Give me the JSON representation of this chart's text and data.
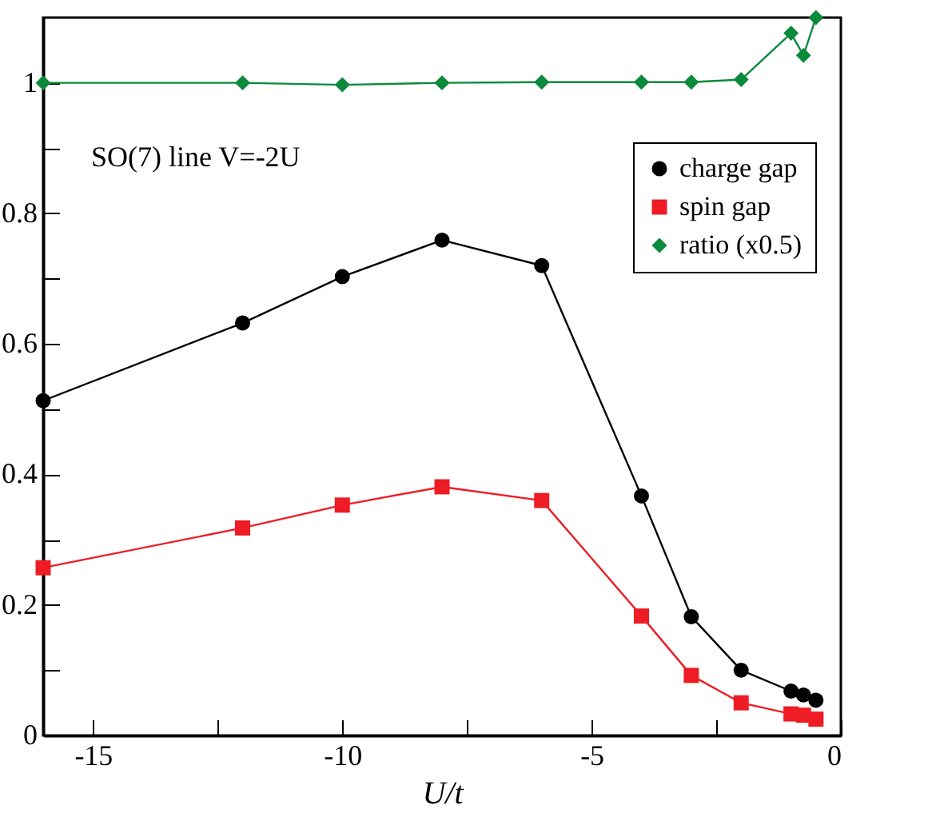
{
  "chart_data": {
    "type": "line",
    "xlabel": "U/t",
    "annotations": [
      "SO(7) line V=-2U"
    ],
    "x": [
      -16,
      -12,
      -10,
      -8,
      -6,
      -4,
      -3,
      -2,
      -1,
      -0.75,
      -0.5
    ],
    "series": [
      {
        "name": "charge gap",
        "color": "#000000",
        "marker": "circle",
        "values": [
          0.513,
          0.632,
          0.703,
          0.759,
          0.72,
          0.367,
          0.182,
          0.1,
          0.068,
          0.062,
          0.054
        ]
      },
      {
        "name": "spin gap",
        "color": "#ee1c24",
        "marker": "square",
        "values": [
          0.257,
          0.318,
          0.353,
          0.381,
          0.36,
          0.183,
          0.092,
          0.05,
          0.033,
          0.031,
          0.025
        ]
      },
      {
        "name": "ratio (x0.5)",
        "color": "#0b8a3c",
        "marker": "diamond",
        "values": [
          1.0,
          1.0,
          0.997,
          1.0,
          1.001,
          1.001,
          1.001,
          1.005,
          1.076,
          1.042,
          1.1
        ]
      }
    ],
    "xlim": [
      -16,
      0
    ],
    "ylim": [
      0,
      1.1
    ],
    "xticks": [
      -15,
      {
        "value": -12.5,
        "label": null
      },
      -10,
      {
        "value": -7.5,
        "label": null
      },
      -5,
      {
        "value": -2.5,
        "label": null
      },
      0
    ],
    "yticks": [
      0,
      {
        "value": 0.1,
        "label": null
      },
      0.2,
      {
        "value": 0.3,
        "label": null
      },
      0.4,
      {
        "value": 0.5,
        "label": null
      },
      0.6,
      {
        "value": 0.7,
        "label": null
      },
      0.8,
      {
        "value": 0.9,
        "label": null
      },
      1
    ],
    "legend": "top right",
    "grid": false
  }
}
